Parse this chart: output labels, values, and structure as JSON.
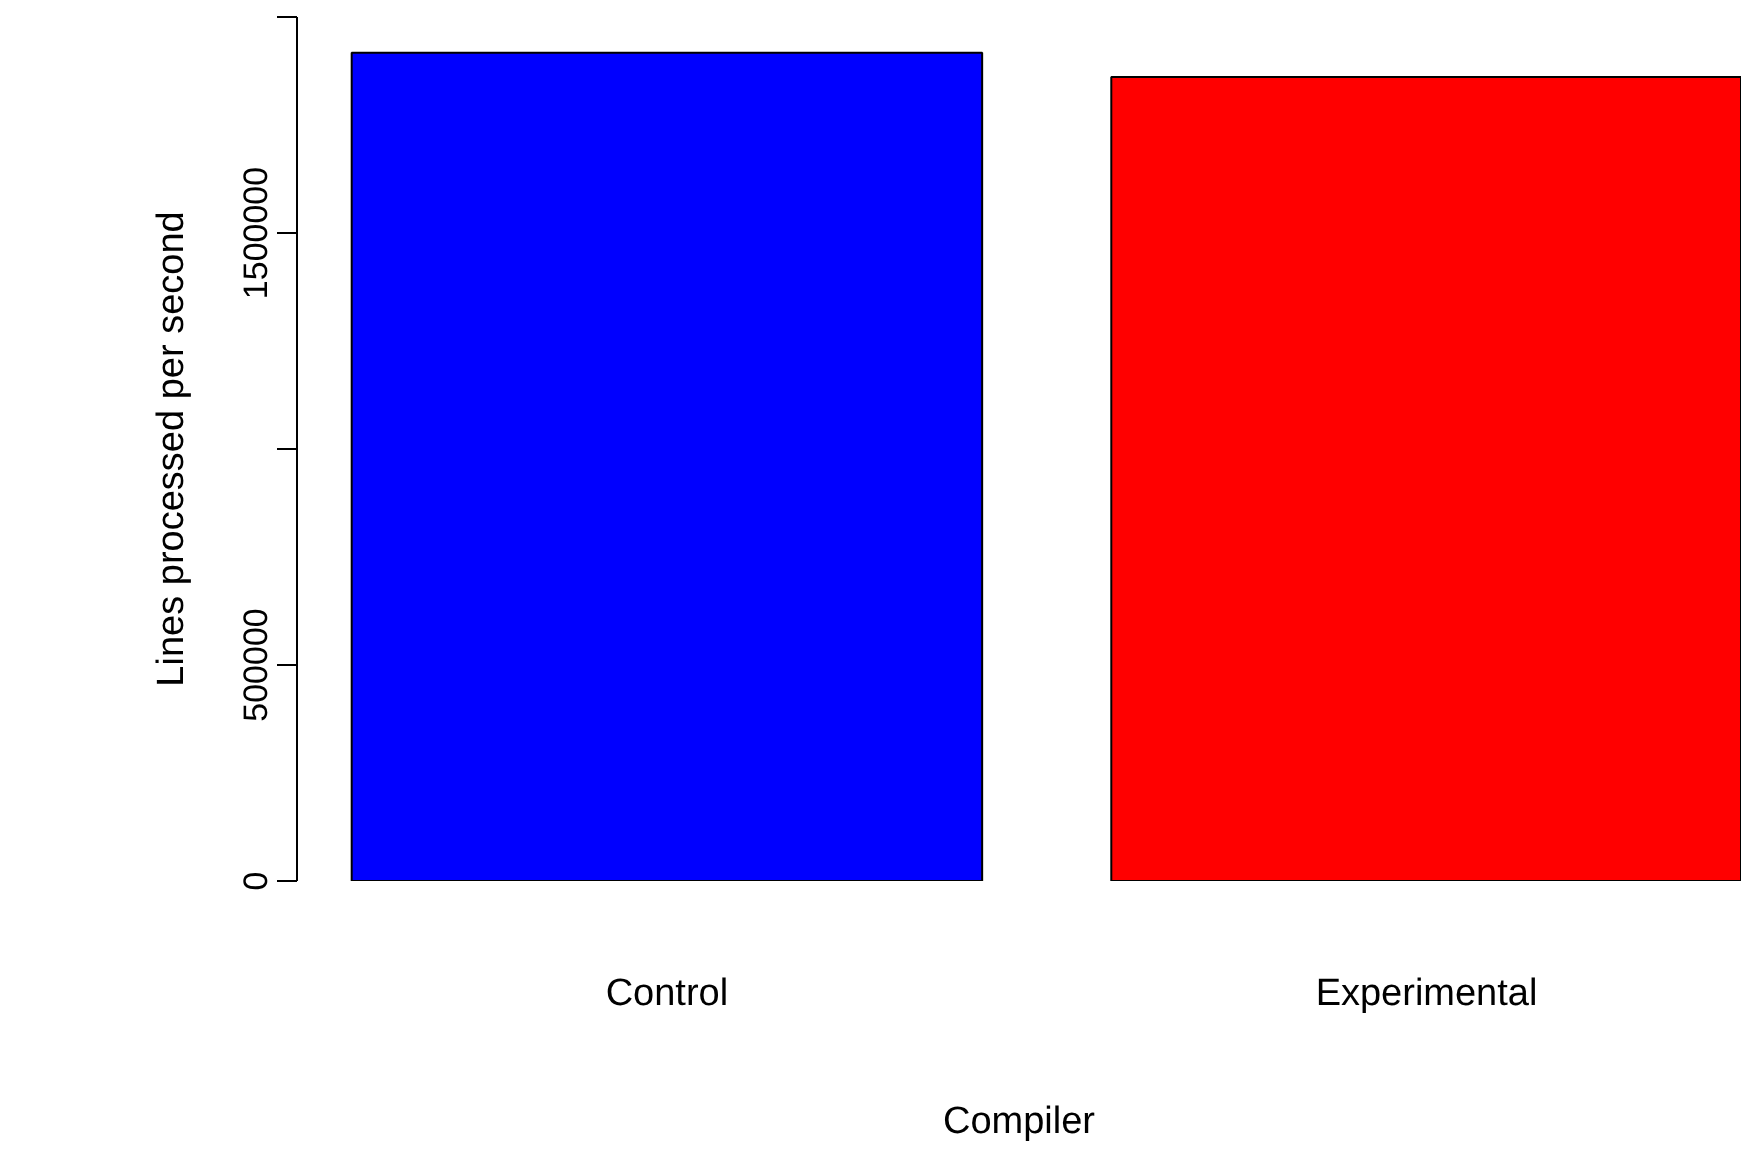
{
  "chart_data": {
    "type": "bar",
    "xlabel": "Compiler",
    "ylabel": "Lines processed per second",
    "categories": [
      "Control",
      "Experimental"
    ],
    "values": [
      1917000,
      1861000
    ],
    "colors": [
      "#0000ff",
      "#ff0000"
    ],
    "ylim": [
      0,
      2000000
    ],
    "yticks": [
      0,
      500000,
      {
        "value": 1000000,
        "label": null
      },
      1500000,
      {
        "value": 2000000,
        "label": null
      }
    ],
    "grid": false
  }
}
